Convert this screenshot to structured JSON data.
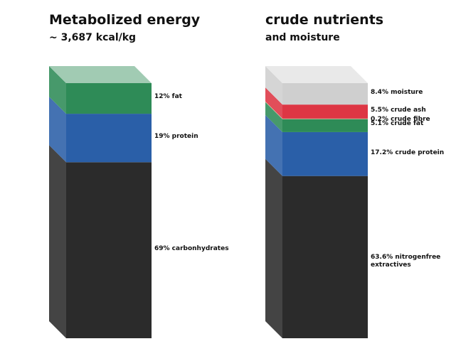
{
  "colors": {
    "carbs": "#2b2b2b",
    "protein": "#2a5fa8",
    "fat": "#2e8b57",
    "fibre": "#d8c19a",
    "ash": "#dd3644",
    "moisture": "#cfcfcf"
  },
  "chart_data": [
    {
      "type": "stacked-bar-3d",
      "title": "Metabolized energy",
      "subtitle": "~ 3,687 kcal/kg",
      "unit": "%",
      "segments": [
        {
          "label": "69% carbonhydrates",
          "value": 69,
          "color_key": "carbs"
        },
        {
          "label": "19% protein",
          "value": 19,
          "color_key": "protein"
        },
        {
          "label": "12% fat",
          "value": 12,
          "color_key": "fat"
        }
      ]
    },
    {
      "type": "stacked-bar-3d",
      "title": "crude nutrients",
      "subtitle": "and moisture",
      "unit": "%",
      "segments": [
        {
          "label": "63.6% nitrogenfree extractives",
          "value": 63.6,
          "color_key": "carbs"
        },
        {
          "label": "17.2% crude protein",
          "value": 17.2,
          "color_key": "protein"
        },
        {
          "label": "5.1% crude fat",
          "value": 5.1,
          "color_key": "fat"
        },
        {
          "label": "0.2% crude fibre",
          "value": 0.2,
          "color_key": "fibre"
        },
        {
          "label": "5.5% crude ash",
          "value": 5.5,
          "color_key": "ash"
        },
        {
          "label": "8.4% moisture",
          "value": 8.4,
          "color_key": "moisture"
        }
      ]
    }
  ]
}
